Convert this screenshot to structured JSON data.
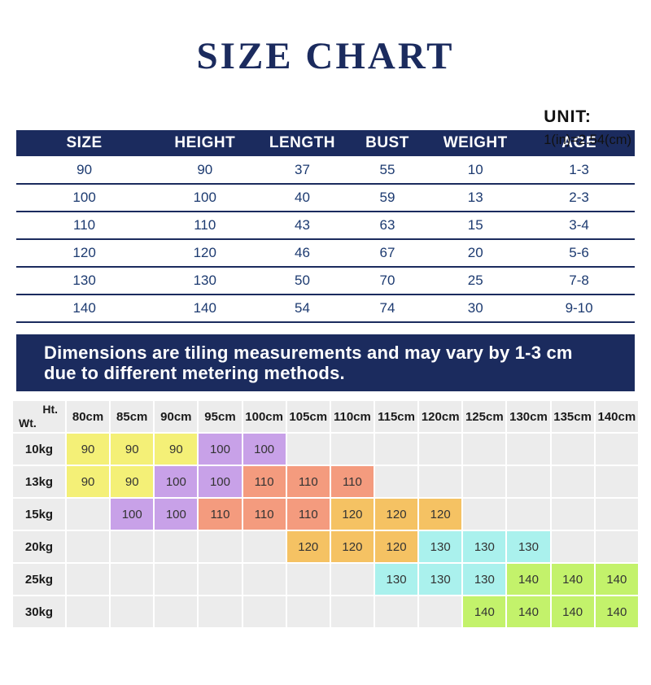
{
  "title": "SIZE CHART",
  "unit": {
    "label": "UNIT:",
    "value": "1(in)=2.54(cm)"
  },
  "notice": {
    "line1": "Dimensions are tiling measurements and may vary by 1-3 cm",
    "line2": "due to different metering methods."
  },
  "chart_data": [
    {
      "type": "table",
      "columns": [
        "SIZE",
        "HEIGHT",
        "LENGTH",
        "BUST",
        "WEIGHT",
        "AGE"
      ],
      "rows": [
        [
          "90",
          "90",
          "37",
          "55",
          "10",
          "1-3"
        ],
        [
          "100",
          "100",
          "40",
          "59",
          "13",
          "2-3"
        ],
        [
          "110",
          "110",
          "43",
          "63",
          "15",
          "3-4"
        ],
        [
          "120",
          "120",
          "46",
          "67",
          "20",
          "5-6"
        ],
        [
          "130",
          "130",
          "50",
          "70",
          "25",
          "7-8"
        ],
        [
          "140",
          "140",
          "54",
          "74",
          "30",
          "9-10"
        ]
      ]
    },
    {
      "type": "table",
      "corner": {
        "top_label": "Ht.",
        "bottom_label": "Wt."
      },
      "columns": [
        "80cm",
        "85cm",
        "90cm",
        "95cm",
        "100cm",
        "105cm",
        "110cm",
        "115cm",
        "120cm",
        "125cm",
        "130cm",
        "135cm",
        "140cm"
      ],
      "row_labels": [
        "10kg",
        "13kg",
        "15kg",
        "20kg",
        "25kg",
        "30kg"
      ],
      "cells": [
        [
          "90",
          "90",
          "90",
          "100",
          "100",
          "",
          "",
          "",
          "",
          "",
          "",
          "",
          ""
        ],
        [
          "90",
          "90",
          "100",
          "100",
          "110",
          "110",
          "110",
          "",
          "",
          "",
          "",
          "",
          ""
        ],
        [
          "",
          "100",
          "100",
          "110",
          "110",
          "110",
          "120",
          "120",
          "120",
          "",
          "",
          "",
          ""
        ],
        [
          "",
          "",
          "",
          "",
          "",
          "120",
          "120",
          "120",
          "130",
          "130",
          "130",
          "",
          ""
        ],
        [
          "",
          "",
          "",
          "",
          "",
          "",
          "",
          "130",
          "130",
          "130",
          "140",
          "140",
          "140"
        ],
        [
          "",
          "",
          "",
          "",
          "",
          "",
          "",
          "",
          "",
          "140",
          "140",
          "140",
          "140"
        ]
      ],
      "value_colors": {
        "90": "#f4f077",
        "100": "#c8a1e8",
        "110": "#f49b7e",
        "120": "#f5c263",
        "130": "#aaf1ed",
        "140": "#c3f26b"
      }
    }
  ],
  "theme": {
    "navy": "#1b2b5e",
    "table_text": "#1c3a70",
    "cell_gray": "#ececec"
  }
}
